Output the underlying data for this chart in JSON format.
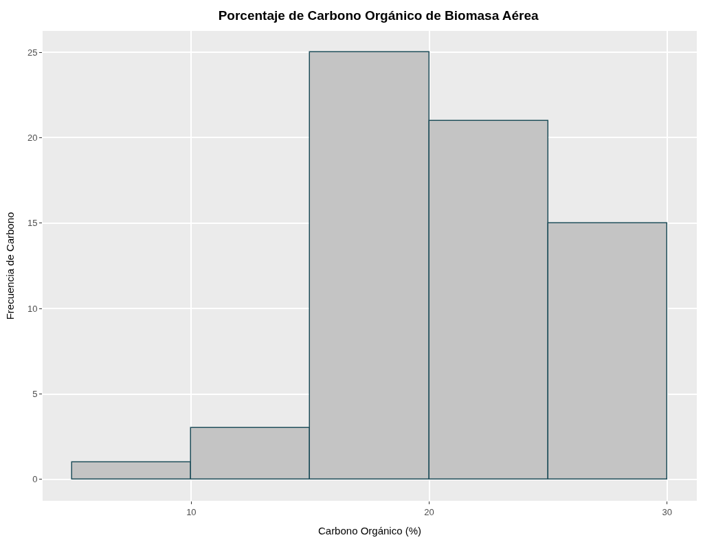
{
  "chart_data": {
    "type": "histogram",
    "title": "Porcentaje de Carbono Orgánico de Biomasa Aérea",
    "xlabel": "Carbono Orgánico (%)",
    "ylabel": "Frecuencia de Carbono",
    "bins": [
      5,
      10,
      15,
      20,
      25,
      30
    ],
    "values": [
      1,
      3,
      25,
      21,
      15
    ],
    "color": "#c4c4c4",
    "xlim": [
      3.75,
      31.25
    ],
    "xticks": [
      10,
      20,
      30
    ],
    "ylim": [
      -1.25,
      26.25
    ],
    "yticks": [
      0,
      5,
      10,
      15,
      20,
      25
    ],
    "grid": true
  }
}
